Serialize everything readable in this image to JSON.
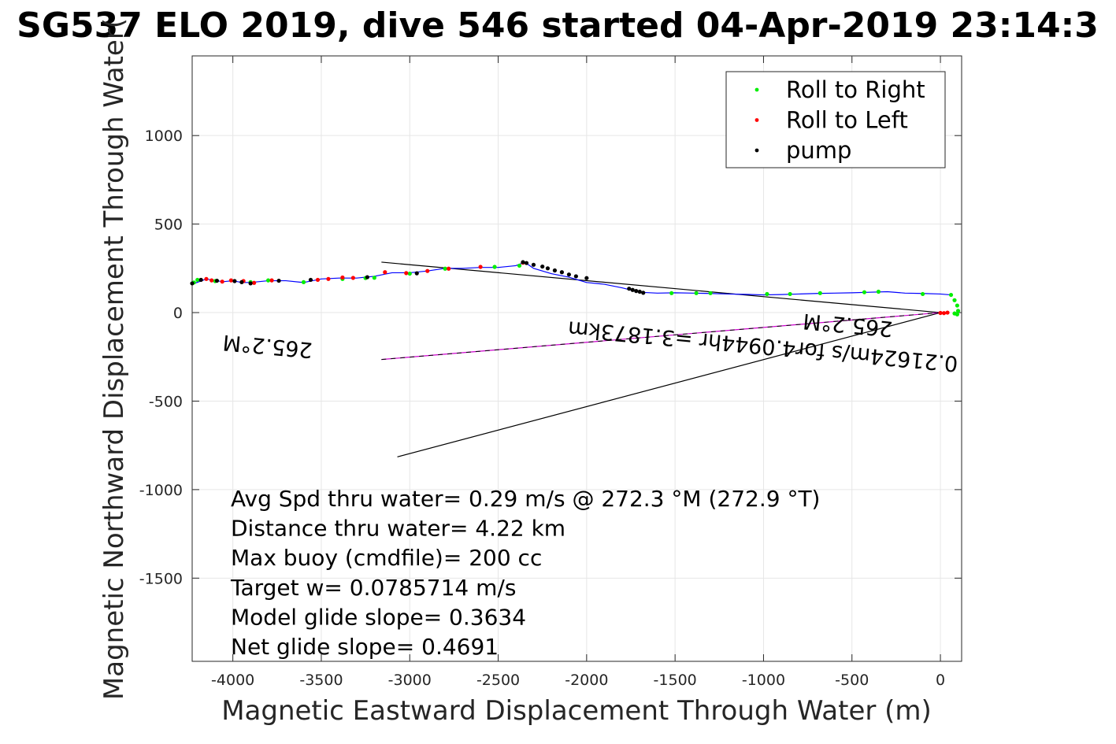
{
  "chart_data": {
    "type": "scatter",
    "title": "SG537 ELO 2019, dive 546 started 04-Apr-2019 23:14:3",
    "xlabel": "Magnetic Eastward Displacement Through Water (m)",
    "ylabel": "Magnetic Northward Displacement Through Water(",
    "xlim": [
      -4230,
      120
    ],
    "ylim": [
      -1970,
      1450
    ],
    "x_ticks": [
      -4000,
      -3500,
      -3000,
      -2500,
      -2000,
      -1500,
      -1000,
      -500,
      0
    ],
    "x_tick_labels": [
      "-4000",
      "-3500",
      "-3000",
      "-2500",
      "-2000",
      "-1500",
      "-1000",
      "-500",
      "0"
    ],
    "y_ticks": [
      -1500,
      -1000,
      -500,
      0,
      500,
      1000
    ],
    "y_tick_labels": [
      "-1500",
      "-1000",
      "-500",
      "0",
      "500",
      "1000"
    ],
    "grid": true,
    "legend_position": "top-right",
    "legend": [
      {
        "label": "Roll to Right",
        "color": "#00ee00"
      },
      {
        "label": "Roll to Left",
        "color": "#ff0000"
      },
      {
        "label": "pump",
        "color": "#000000"
      }
    ],
    "track": {
      "name": "",
      "color": "#0000ff",
      "x": [
        -4230,
        -4150,
        -4100,
        -4050,
        -4000,
        -3950,
        -3900,
        -3800,
        -3700,
        -3600,
        -3500,
        -3400,
        -3300,
        -3200,
        -3100,
        -3000,
        -2900,
        -2800,
        -2700,
        -2600,
        -2500,
        -2400,
        -2350,
        -2300,
        -2200,
        -2100,
        -2000,
        -1900,
        -1800,
        -1700,
        -1600,
        -1500,
        -1400,
        -1300,
        -1200,
        -1100,
        -1000,
        -900,
        -800,
        -700,
        -600,
        -500,
        -400,
        -300,
        -200,
        -100,
        0,
        60
      ],
      "y": [
        160,
        190,
        180,
        175,
        180,
        170,
        170,
        180,
        180,
        170,
        190,
        195,
        195,
        205,
        225,
        225,
        235,
        250,
        250,
        255,
        255,
        265,
        285,
        250,
        220,
        200,
        170,
        160,
        140,
        115,
        110,
        112,
        110,
        108,
        105,
        103,
        100,
        102,
        105,
        108,
        110,
        112,
        115,
        118,
        110,
        108,
        105,
        100
      ]
    },
    "roll_right": {
      "x": [
        -4220,
        -4200,
        -4100,
        -3900,
        -3800,
        -3600,
        -3380,
        -3250,
        -3200,
        -3000,
        -2800,
        -2520,
        -2380,
        -1520,
        -1380,
        -1300,
        -980,
        -850,
        -680,
        -430,
        -350,
        -100,
        60,
        80,
        95,
        100,
        95,
        80
      ],
      "y": [
        170,
        185,
        178,
        172,
        182,
        172,
        190,
        195,
        197,
        220,
        248,
        258,
        265,
        110,
        110,
        110,
        105,
        105,
        110,
        115,
        118,
        105,
        100,
        70,
        40,
        10,
        -10,
        -5
      ]
    },
    "roll_left": {
      "x": [
        -4150,
        -4120,
        -4060,
        -4010,
        -3940,
        -3880,
        -3780,
        -3520,
        -3460,
        -3380,
        -3320,
        -3140,
        -3020,
        -2900,
        -2780,
        -2600,
        -2360,
        0,
        20,
        40
      ],
      "y": [
        190,
        182,
        175,
        182,
        178,
        168,
        182,
        185,
        190,
        198,
        196,
        228,
        223,
        235,
        248,
        258,
        282,
        -2,
        -3,
        0
      ]
    },
    "pump": {
      "x": [
        -4230,
        -4180,
        -4090,
        -3990,
        -3950,
        -3900,
        -3740,
        -3560,
        -3240,
        -2960,
        -2360,
        -2340,
        -2300,
        -2250,
        -2220,
        -2180,
        -2140,
        -2100,
        -2060,
        -2000,
        -1760,
        -1740,
        -1720,
        -1700,
        -1680
      ],
      "y": [
        165,
        185,
        180,
        178,
        172,
        165,
        180,
        185,
        200,
        222,
        285,
        280,
        270,
        260,
        250,
        238,
        228,
        215,
        205,
        195,
        135,
        128,
        122,
        118,
        112
      ],
      "color": "#000000"
    },
    "ref_lines": [
      {
        "x": [
          -3160,
          0
        ],
        "y": [
          285,
          0
        ],
        "color": "#000000"
      },
      {
        "x": [
          -3070,
          0
        ],
        "y": [
          -815,
          0
        ],
        "color": "#000000"
      },
      {
        "x": [
          -3160,
          0
        ],
        "y": [
          -265,
          0
        ],
        "color": "#cc00cc"
      }
    ],
    "annotations": [
      {
        "text": "265.2°M",
        "x": -3800,
        "y": -150,
        "rotate": 185.2
      },
      {
        "text": "0.21624m/s for4.0944hr =3.1873km",
        "x": -1000,
        "y": -150,
        "rotate": 185.2
      },
      {
        "text": "265.2°M",
        "x": -520,
        "y": -30,
        "rotate": 185.2
      }
    ],
    "stats": [
      "Avg Spd thru water=  0.29 m/s @ 272.3 °M (272.9 °T)",
      "Distance thru water=  4.22 km",
      "Max buoy (cmdfile)= 200 cc",
      "Target w= 0.0785714 m/s",
      "Model glide slope= 0.3634",
      "Net glide slope= 0.4691"
    ]
  }
}
